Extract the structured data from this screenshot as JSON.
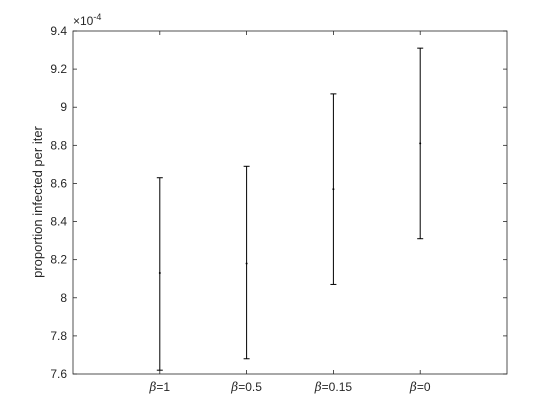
{
  "chart_data": {
    "type": "errorbar",
    "categories": [
      {
        "symbol": "β",
        "suffix": "=1"
      },
      {
        "symbol": "β",
        "suffix": "=0.5"
      },
      {
        "symbol": "β",
        "suffix": "=0.15"
      },
      {
        "symbol": "β",
        "suffix": "=0"
      }
    ],
    "series": [
      {
        "mean": [
          8.13,
          8.18,
          8.57,
          8.81
        ],
        "lower": [
          7.62,
          7.68,
          8.07,
          8.31
        ],
        "upper": [
          8.63,
          8.69,
          9.07,
          9.31
        ]
      }
    ],
    "ylim": [
      7.6,
      9.4
    ],
    "yticks": [
      "7.6",
      "7.8",
      "8",
      "8.2",
      "8.4",
      "8.6",
      "8.8",
      "9",
      "9.2",
      "9.4"
    ],
    "y_multiplier": {
      "base": "×10",
      "exponent": "-4"
    },
    "xlabel": "",
    "ylabel": "proportion infected per iter",
    "title": "",
    "grid": false,
    "line_color": "#000000",
    "axis_color": "#262626"
  }
}
